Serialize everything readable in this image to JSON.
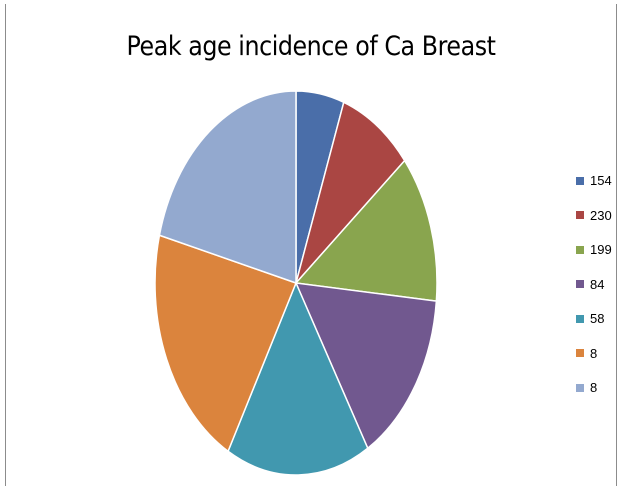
{
  "chart_data": {
    "type": "pie",
    "title": "Peak age incidence of Ca Breast",
    "legend_position": "right",
    "series": [
      {
        "name": "154",
        "value": 5.5,
        "color": "#4a6ea9"
      },
      {
        "name": "230",
        "value": 8.5,
        "color": "#aa4643"
      },
      {
        "name": "199",
        "value": 12.5,
        "color": "#89a54e"
      },
      {
        "name": "84",
        "value": 15.0,
        "color": "#71588f"
      },
      {
        "name": "58",
        "value": 16.5,
        "color": "#4198af"
      },
      {
        "name": "8",
        "value": 21.0,
        "color": "#db843d"
      },
      {
        "name": "8",
        "value": 21.0,
        "color": "#93a9cf"
      }
    ]
  }
}
